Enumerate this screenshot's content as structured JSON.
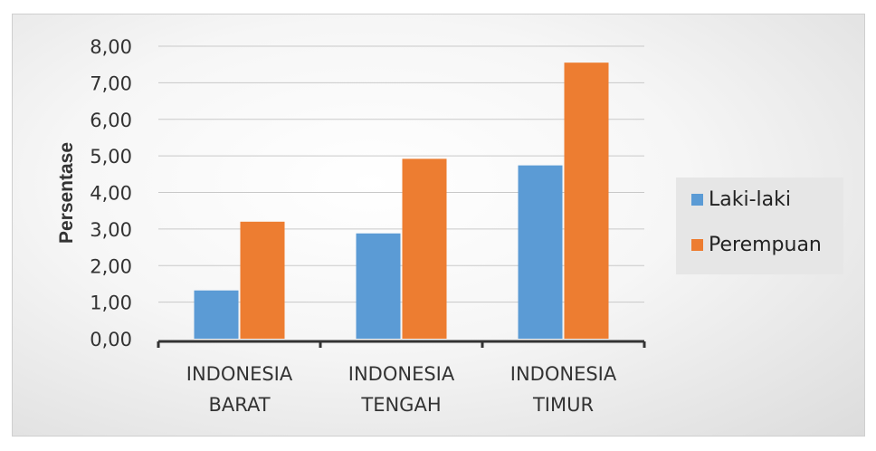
{
  "chart_data": {
    "type": "bar",
    "categories": [
      [
        "INDONESIA",
        "BARAT"
      ],
      [
        "INDONESIA",
        "TENGAH"
      ],
      [
        "INDONESIA",
        "TIMUR"
      ]
    ],
    "series": [
      {
        "name": "Laki-laki",
        "values": [
          1.32,
          2.88,
          4.74
        ],
        "color": "#5b9bd5"
      },
      {
        "name": "Perempuan",
        "values": [
          3.2,
          4.92,
          7.55
        ],
        "color": "#ed7d31"
      }
    ],
    "ylabel": "Persentase",
    "xlabel": "",
    "ylim": [
      0,
      8
    ],
    "yticks": [
      "0,00",
      "1,00",
      "2,00",
      "3,00",
      "4,00",
      "5,00",
      "6,00",
      "7,00",
      "8,00"
    ],
    "grid": true,
    "legend_position": "right"
  }
}
